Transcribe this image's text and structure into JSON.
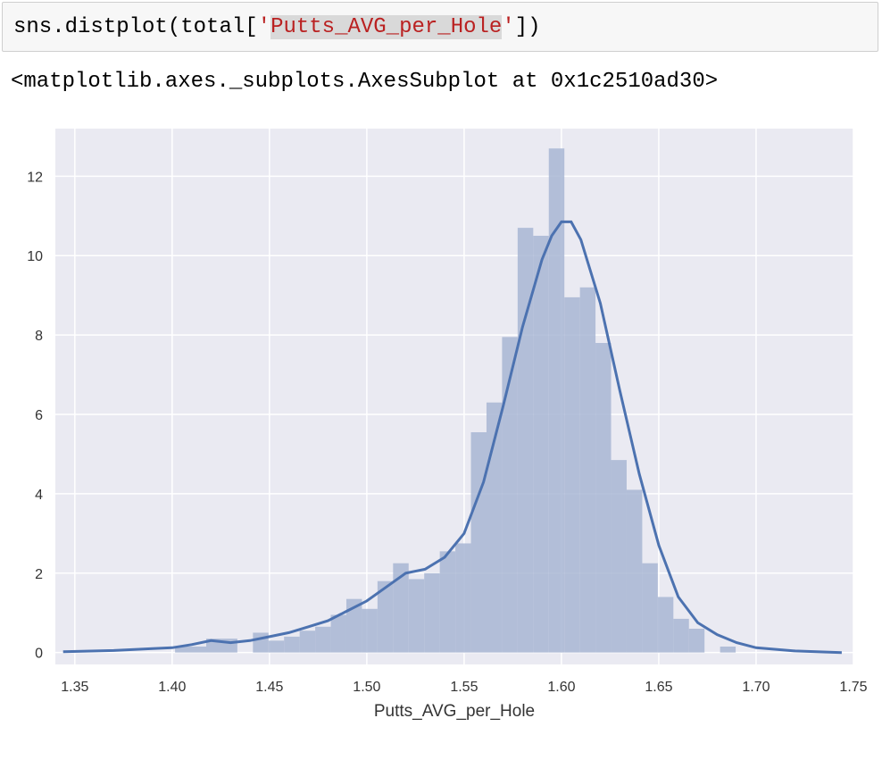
{
  "cell": {
    "code_prefix": "sns.distplot(total[",
    "code_string_quote_open": "'",
    "code_string_highlight": "Putts_AVG_per_Hole",
    "code_string_quote_close": "'",
    "code_suffix": "])"
  },
  "output": {
    "repr_text": "<matplotlib.axes._subplots.AxesSubplot at 0x1c2510ad30>"
  },
  "colors": {
    "axes_bg": "#eaeaf2",
    "grid": "#ffffff",
    "bar_fill": "#a8b6d4",
    "kde_line": "#4c72b0",
    "tick_text": "#333333"
  },
  "chart_data": {
    "type": "histogram_kde",
    "title": "",
    "xlabel": "Putts_AVG_per_Hole",
    "ylabel": "",
    "xlim": [
      1.34,
      1.75
    ],
    "ylim": [
      -0.3,
      13.2
    ],
    "xticks": [
      1.35,
      1.4,
      1.45,
      1.5,
      1.55,
      1.6,
      1.65,
      1.7,
      1.75
    ],
    "xtick_labels": [
      "1.35",
      "1.40",
      "1.45",
      "1.50",
      "1.55",
      "1.60",
      "1.65",
      "1.70",
      "1.75"
    ],
    "yticks": [
      0,
      2,
      4,
      6,
      8,
      10,
      12
    ],
    "ytick_labels": [
      "0",
      "2",
      "4",
      "6",
      "8",
      "10",
      "12"
    ],
    "grid": true,
    "bins": [
      {
        "x0": 1.4015,
        "x1": 1.4175,
        "height": 0.15
      },
      {
        "x0": 1.4175,
        "x1": 1.4335,
        "height": 0.35
      },
      {
        "x0": 1.4415,
        "x1": 1.4495,
        "height": 0.5
      },
      {
        "x0": 1.4495,
        "x1": 1.4575,
        "height": 0.3
      },
      {
        "x0": 1.4575,
        "x1": 1.4655,
        "height": 0.4
      },
      {
        "x0": 1.4655,
        "x1": 1.4735,
        "height": 0.55
      },
      {
        "x0": 1.4735,
        "x1": 1.4815,
        "height": 0.65
      },
      {
        "x0": 1.4815,
        "x1": 1.4895,
        "height": 0.95
      },
      {
        "x0": 1.4895,
        "x1": 1.4975,
        "height": 1.35
      },
      {
        "x0": 1.4975,
        "x1": 1.5055,
        "height": 1.1
      },
      {
        "x0": 1.5055,
        "x1": 1.5135,
        "height": 1.8
      },
      {
        "x0": 1.5135,
        "x1": 1.5215,
        "height": 2.25
      },
      {
        "x0": 1.5215,
        "x1": 1.5295,
        "height": 1.85
      },
      {
        "x0": 1.5295,
        "x1": 1.5375,
        "height": 2.0
      },
      {
        "x0": 1.5375,
        "x1": 1.5455,
        "height": 2.55
      },
      {
        "x0": 1.5455,
        "x1": 1.5535,
        "height": 2.75
      },
      {
        "x0": 1.5535,
        "x1": 1.5615,
        "height": 5.55
      },
      {
        "x0": 1.5615,
        "x1": 1.5695,
        "height": 6.3
      },
      {
        "x0": 1.5695,
        "x1": 1.5775,
        "height": 7.95
      },
      {
        "x0": 1.5775,
        "x1": 1.5855,
        "height": 10.7
      },
      {
        "x0": 1.5855,
        "x1": 1.5935,
        "height": 10.5
      },
      {
        "x0": 1.5935,
        "x1": 1.6015,
        "height": 12.7
      },
      {
        "x0": 1.6015,
        "x1": 1.6095,
        "height": 8.95
      },
      {
        "x0": 1.6095,
        "x1": 1.6175,
        "height": 9.2
      },
      {
        "x0": 1.6175,
        "x1": 1.6255,
        "height": 7.8
      },
      {
        "x0": 1.6255,
        "x1": 1.6335,
        "height": 4.85
      },
      {
        "x0": 1.6335,
        "x1": 1.6415,
        "height": 4.1
      },
      {
        "x0": 1.6415,
        "x1": 1.6495,
        "height": 2.25
      },
      {
        "x0": 1.6495,
        "x1": 1.6575,
        "height": 1.4
      },
      {
        "x0": 1.6575,
        "x1": 1.6655,
        "height": 0.85
      },
      {
        "x0": 1.6655,
        "x1": 1.6735,
        "height": 0.6
      },
      {
        "x0": 1.6815,
        "x1": 1.6895,
        "height": 0.15
      }
    ],
    "kde": {
      "x": [
        1.344,
        1.37,
        1.39,
        1.4,
        1.41,
        1.42,
        1.43,
        1.44,
        1.45,
        1.46,
        1.47,
        1.48,
        1.49,
        1.5,
        1.51,
        1.52,
        1.53,
        1.54,
        1.55,
        1.56,
        1.57,
        1.58,
        1.59,
        1.595,
        1.6,
        1.605,
        1.61,
        1.62,
        1.63,
        1.64,
        1.65,
        1.66,
        1.67,
        1.68,
        1.69,
        1.7,
        1.72,
        1.744
      ],
      "y": [
        0.02,
        0.05,
        0.1,
        0.12,
        0.2,
        0.3,
        0.25,
        0.3,
        0.4,
        0.5,
        0.65,
        0.8,
        1.05,
        1.3,
        1.65,
        2.0,
        2.1,
        2.4,
        3.0,
        4.3,
        6.2,
        8.2,
        9.9,
        10.5,
        10.85,
        10.85,
        10.4,
        8.8,
        6.6,
        4.5,
        2.7,
        1.4,
        0.75,
        0.45,
        0.25,
        0.12,
        0.04,
        0.0
      ]
    }
  }
}
